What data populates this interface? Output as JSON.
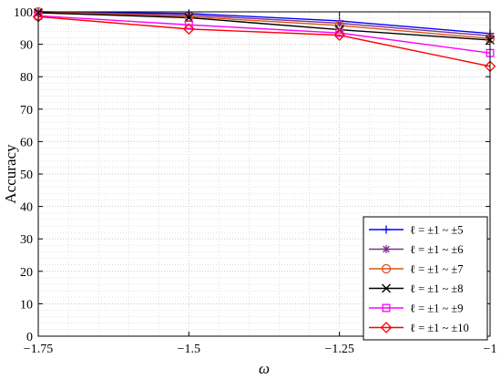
{
  "chart_data": {
    "type": "line",
    "title": "",
    "xlabel": "ω",
    "ylabel": "Accuracy",
    "xlim": [
      -1.75,
      -1
    ],
    "ylim": [
      0,
      100
    ],
    "x": [
      -1.75,
      -1.5,
      -1.25,
      -1
    ],
    "x_tick_values": [
      -1.75,
      -1.5,
      -1.25,
      -1
    ],
    "x_tick_labels": [
      "−1.75",
      "−1.5",
      "−1.25",
      "−1"
    ],
    "y_tick_values": [
      0,
      10,
      20,
      30,
      40,
      50,
      60,
      70,
      80,
      90,
      100
    ],
    "y_tick_labels": [
      "0",
      "10",
      "20",
      "30",
      "40",
      "50",
      "60",
      "70",
      "80",
      "90",
      "100"
    ],
    "grid": true,
    "minor_grid": true,
    "legend_position": "bottom-right",
    "series": [
      {
        "name": "ℓ = ±1 ~ ±5",
        "color": "#0000ff",
        "marker": "plus",
        "values": [
          100,
          99.5,
          97.2,
          93.3
        ]
      },
      {
        "name": "ℓ = ±1 ~ ±6",
        "color": "#7e2f8e",
        "marker": "star",
        "values": [
          100,
          99.0,
          96.5,
          92.6
        ]
      },
      {
        "name": "ℓ = ±1 ~ ±7",
        "color": "#d95319",
        "marker": "circle",
        "values": [
          100,
          98.5,
          95.8,
          91.8
        ]
      },
      {
        "name": "ℓ = ±1 ~ ±8",
        "color": "#000000",
        "marker": "cross",
        "values": [
          99.7,
          98.2,
          94.5,
          91.3
        ]
      },
      {
        "name": "ℓ = ±1 ~ ±9",
        "color": "#ff00ff",
        "marker": "square",
        "values": [
          98.8,
          96.0,
          93.5,
          87.3
        ]
      },
      {
        "name": "ℓ = ±1 ~ ±10",
        "color": "#ff0000",
        "marker": "diamond",
        "values": [
          98.5,
          94.7,
          92.8,
          83.2
        ]
      }
    ]
  }
}
